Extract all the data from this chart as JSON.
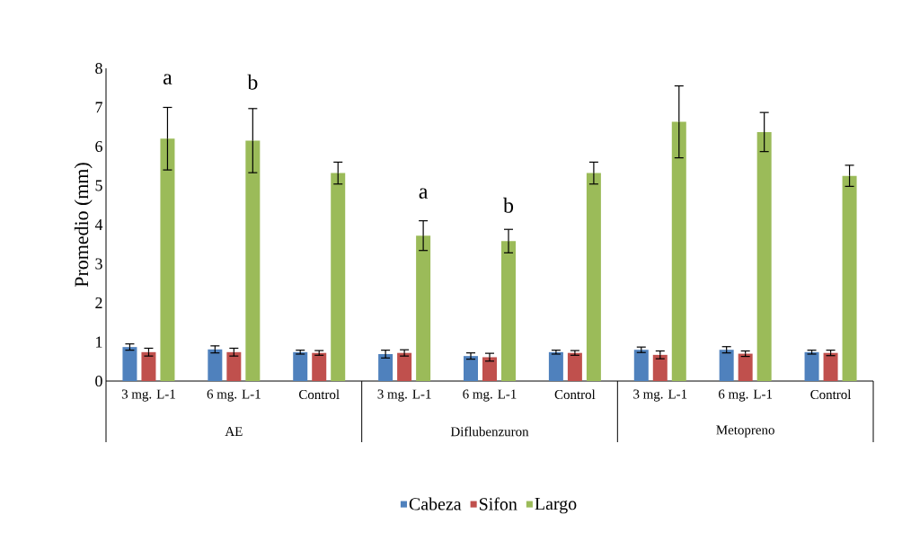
{
  "chart_data": {
    "type": "bar",
    "ylabel": "Promedio (mm)",
    "categories": [
      "3 mg. L-1",
      "6 mg. L-1",
      "Control",
      "3 mg. L-1",
      "6 mg. L-1",
      "Control",
      "3 mg. L-1",
      "6 mg. L-1",
      "Control"
    ],
    "series": [
      {
        "name": "Cabeza",
        "color": "#4f81bd",
        "values": [
          0.87,
          0.81,
          0.74,
          0.69,
          0.64,
          0.74,
          0.8,
          0.8,
          0.74
        ],
        "errors": [
          0.08,
          0.09,
          0.05,
          0.1,
          0.08,
          0.05,
          0.07,
          0.08,
          0.05
        ]
      },
      {
        "name": "Sifon",
        "color": "#c0504d",
        "values": [
          0.74,
          0.74,
          0.72,
          0.72,
          0.61,
          0.72,
          0.67,
          0.7,
          0.72
        ],
        "errors": [
          0.1,
          0.1,
          0.06,
          0.08,
          0.1,
          0.06,
          0.1,
          0.07,
          0.07
        ]
      },
      {
        "name": "Largo",
        "color": "#9bbb59",
        "values": [
          6.2,
          6.15,
          5.32,
          3.72,
          3.58,
          5.32,
          6.63,
          6.37,
          5.25
        ],
        "errors": [
          0.8,
          0.82,
          0.28,
          0.38,
          0.3,
          0.28,
          0.92,
          0.5,
          0.27
        ]
      }
    ],
    "ylim": [
      0,
      8
    ],
    "yticks": [
      0,
      1,
      2,
      3,
      4,
      5,
      6,
      7,
      8
    ],
    "grid": false,
    "legend": "bottom",
    "annotations": [
      "a",
      "b",
      "a",
      "b",
      "AE",
      "Diflubenzuron",
      "Metopreno"
    ]
  }
}
